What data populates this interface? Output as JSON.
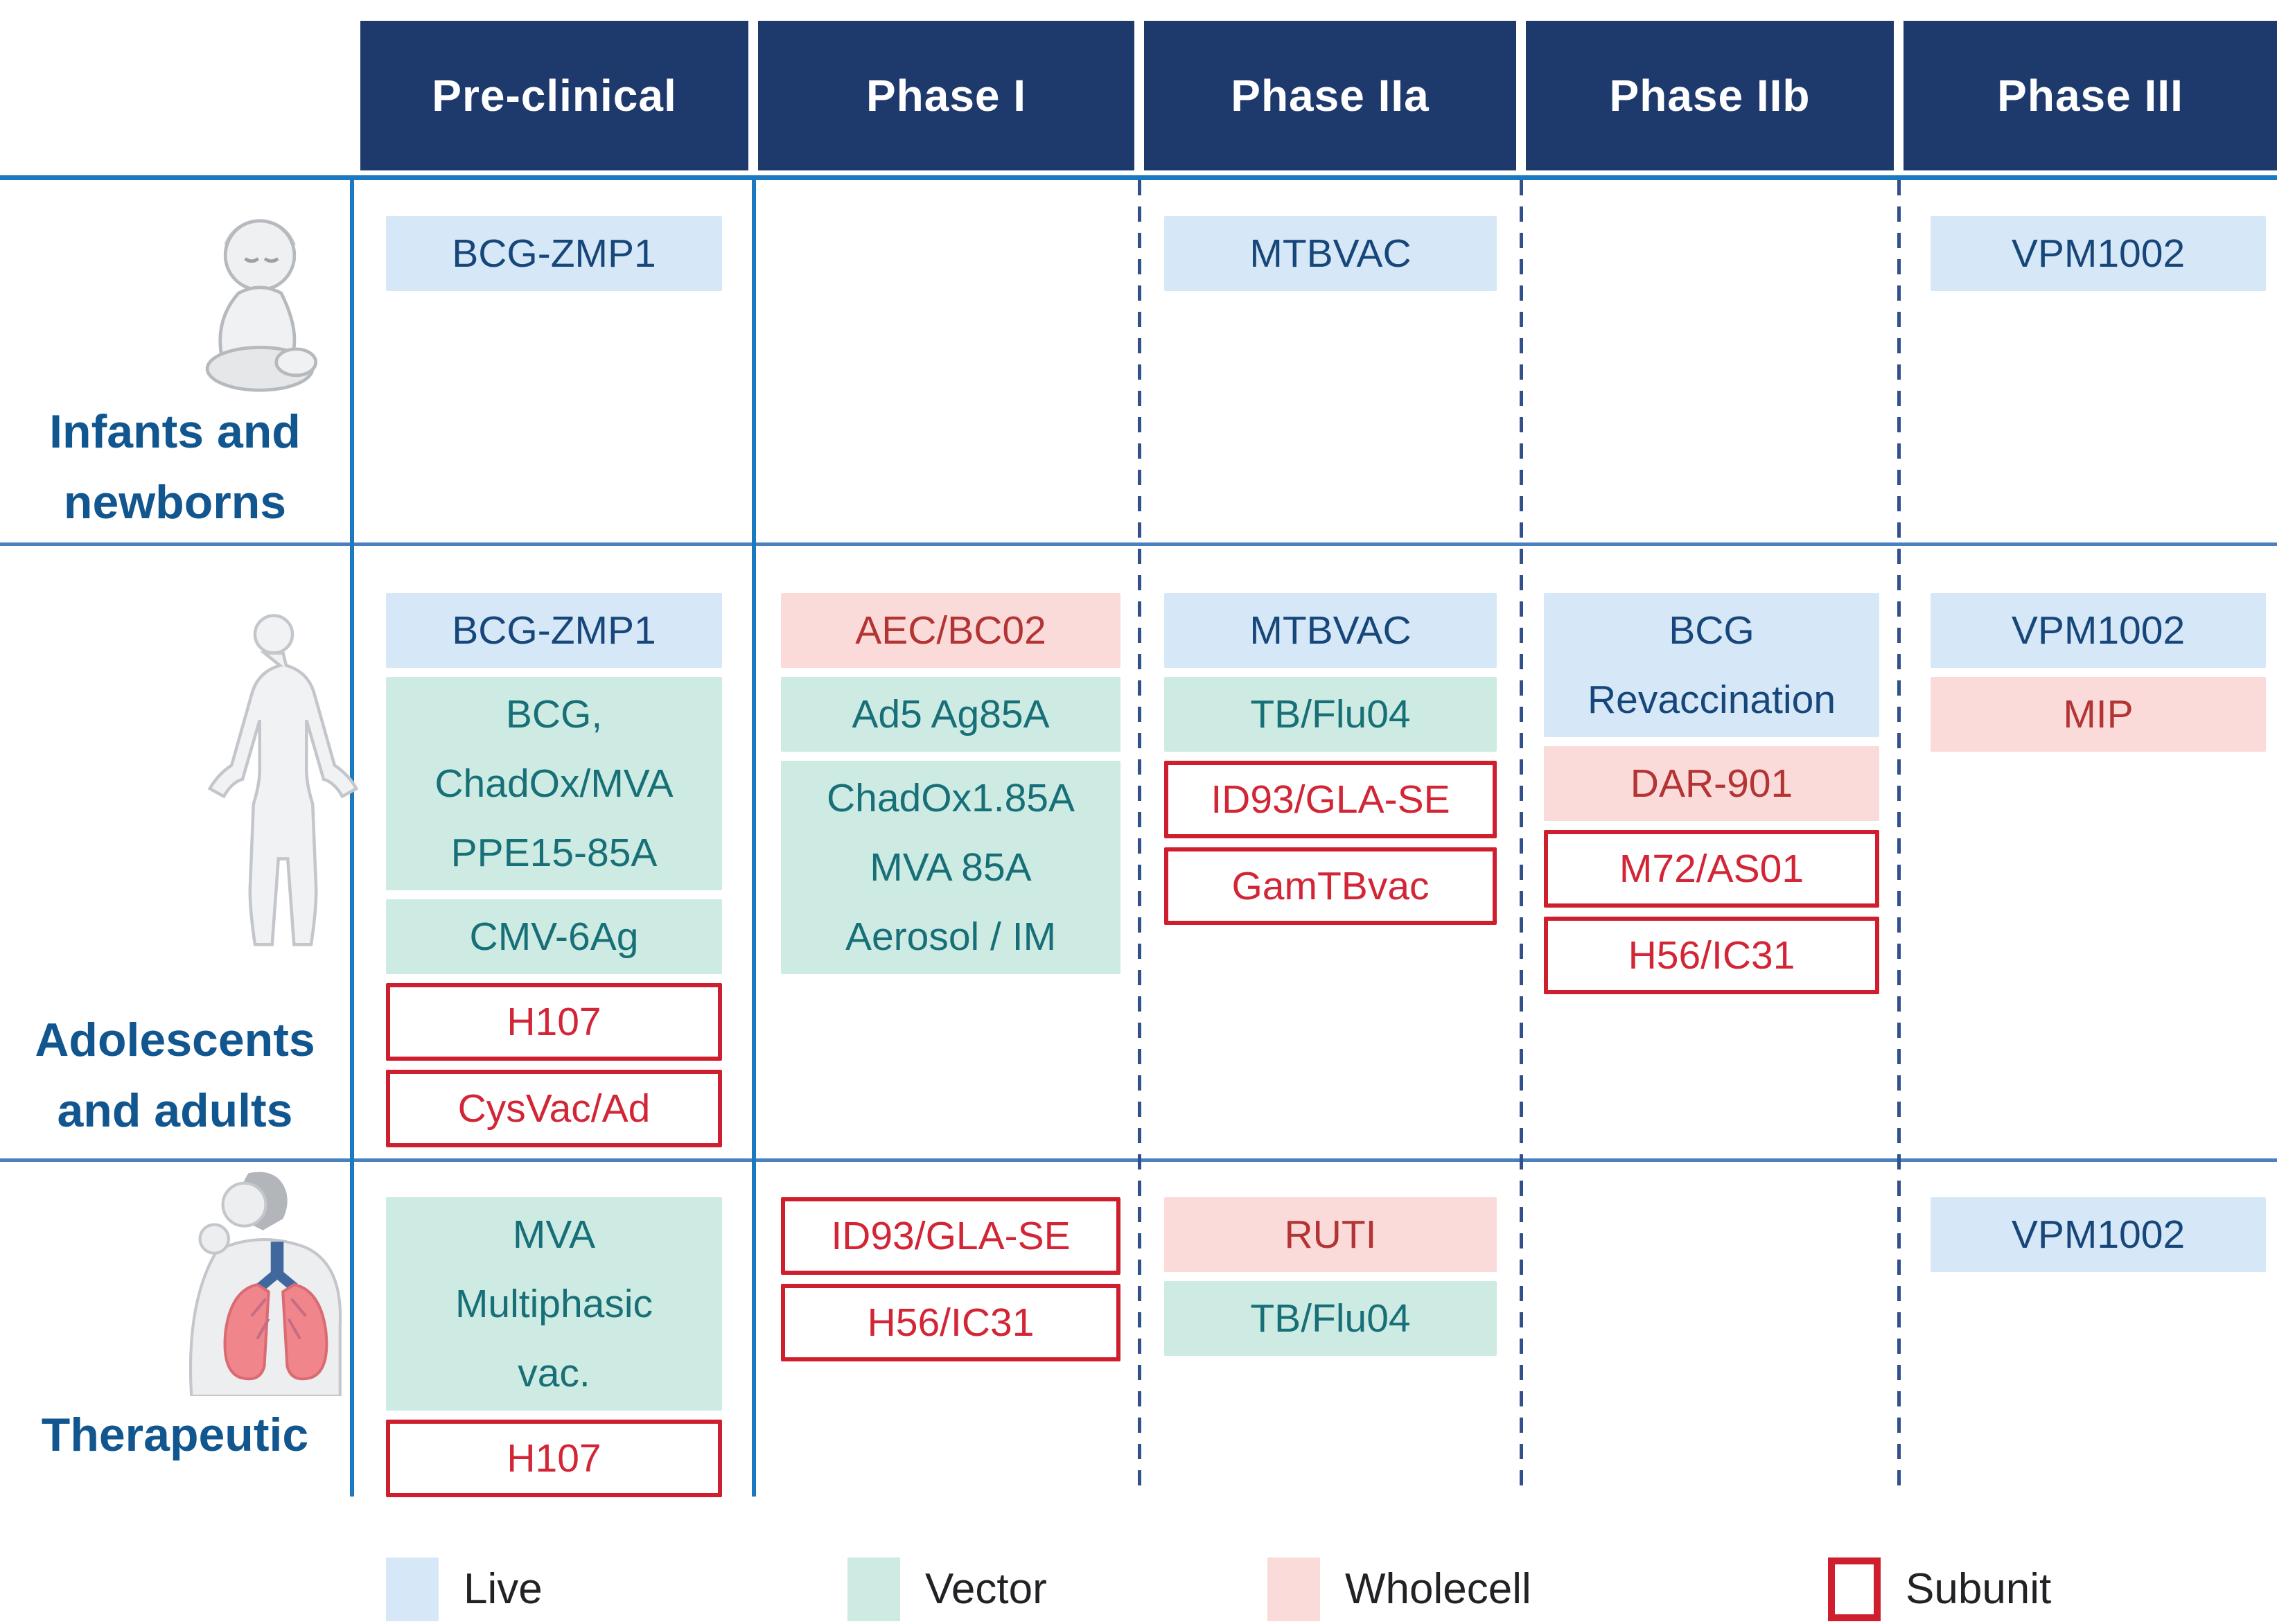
{
  "table": {
    "phases": [
      "Pre-clinical",
      "Phase I",
      "Phase IIa",
      "Phase IIb",
      "Phase III"
    ],
    "rows": [
      {
        "label": "Infants and\nnewborns",
        "icon": "baby-icon",
        "cells": [
          [
            {
              "text": "BCG-ZMP1",
              "type": "live"
            }
          ],
          [],
          [
            {
              "text": "MTBVAC",
              "type": "live"
            }
          ],
          [],
          [
            {
              "text": "VPM1002",
              "type": "live"
            }
          ]
        ]
      },
      {
        "label": "Adolescents\nand adults",
        "icon": "adult-icon",
        "cells": [
          [
            {
              "text": "BCG-ZMP1",
              "type": "live"
            },
            {
              "text": "BCG,\nChadOx/MVA\nPPE15-85A",
              "type": "vector"
            },
            {
              "text": "CMV-6Ag",
              "type": "vector"
            },
            {
              "text": "H107",
              "type": "subunit"
            },
            {
              "text": "CysVac/Ad",
              "type": "subunit"
            }
          ],
          [
            {
              "text": "AEC/BC02",
              "type": "wholecell"
            },
            {
              "text": "Ad5 Ag85A",
              "type": "vector"
            },
            {
              "text": "ChadOx1.85A\nMVA 85A\nAerosol / IM",
              "type": "vector"
            }
          ],
          [
            {
              "text": "MTBVAC",
              "type": "live"
            },
            {
              "text": "TB/Flu04",
              "type": "vector"
            },
            {
              "text": "ID93/GLA-SE",
              "type": "subunit"
            },
            {
              "text": "GamTBvac",
              "type": "subunit"
            }
          ],
          [
            {
              "text": "BCG\nRevaccination",
              "type": "live"
            },
            {
              "text": "DAR-901",
              "type": "wholecell"
            },
            {
              "text": "M72/AS01",
              "type": "subunit"
            },
            {
              "text": "H56/IC31",
              "type": "subunit"
            }
          ],
          [
            {
              "text": "VPM1002",
              "type": "live"
            },
            {
              "text": "MIP",
              "type": "wholecell"
            }
          ]
        ]
      },
      {
        "label": "Therapeutic",
        "icon": "lungs-icon",
        "cells": [
          [
            {
              "text": "MVA\nMultiphasic\nvac.",
              "type": "vector"
            },
            {
              "text": "H107",
              "type": "subunit"
            }
          ],
          [
            {
              "text": "ID93/GLA-SE",
              "type": "subunit"
            },
            {
              "text": "H56/IC31",
              "type": "subunit"
            }
          ],
          [
            {
              "text": "RUTI",
              "type": "wholecell"
            },
            {
              "text": "TB/Flu04",
              "type": "vector"
            }
          ],
          [],
          [
            {
              "text": "VPM1002",
              "type": "live"
            }
          ]
        ]
      }
    ]
  },
  "legend": [
    {
      "label": "Live",
      "type": "live"
    },
    {
      "label": "Vector",
      "type": "vector"
    },
    {
      "label": "Wholecell",
      "type": "wholecell"
    },
    {
      "label": "Subunit",
      "type": "subunit"
    }
  ],
  "colors": {
    "header_bg": "#1e3a6d",
    "header_text": "#ffffff",
    "live_bg": "#d6e8f7",
    "live_text": "#17477a",
    "vector_bg": "#cdeae3",
    "vector_text": "#177077",
    "wholecell_bg": "#fbdbd9",
    "wholecell_text": "#b33434",
    "subunit_border": "#cf1f2e",
    "subunit_text": "#d22535",
    "row_label": "#11568f",
    "grid_solid": "#1b79c0",
    "grid_sep": "#4a80bd",
    "grid_dashed": "#31508c",
    "legend_text": "#202225"
  }
}
